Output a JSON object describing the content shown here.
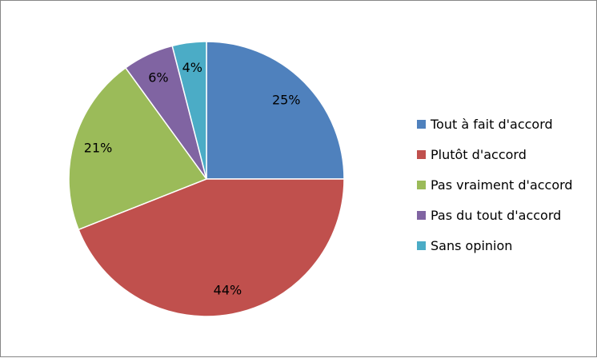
{
  "chart_data": {
    "type": "pie",
    "title": "",
    "categories": [
      "Tout à fait d'accord",
      "Plutôt d'accord",
      "Pas vraiment d'accord",
      "Pas du tout d'accord",
      "Sans opinion"
    ],
    "values": [
      25,
      44,
      21,
      6,
      4
    ],
    "data_labels": [
      "25%",
      "44%",
      "21%",
      "6%",
      "4%"
    ],
    "colors": [
      "#4F81BD",
      "#C0504D",
      "#9BBB59",
      "#8064A2",
      "#4BACC6"
    ],
    "start_angle": "top, clockwise",
    "legend_position": "right"
  }
}
